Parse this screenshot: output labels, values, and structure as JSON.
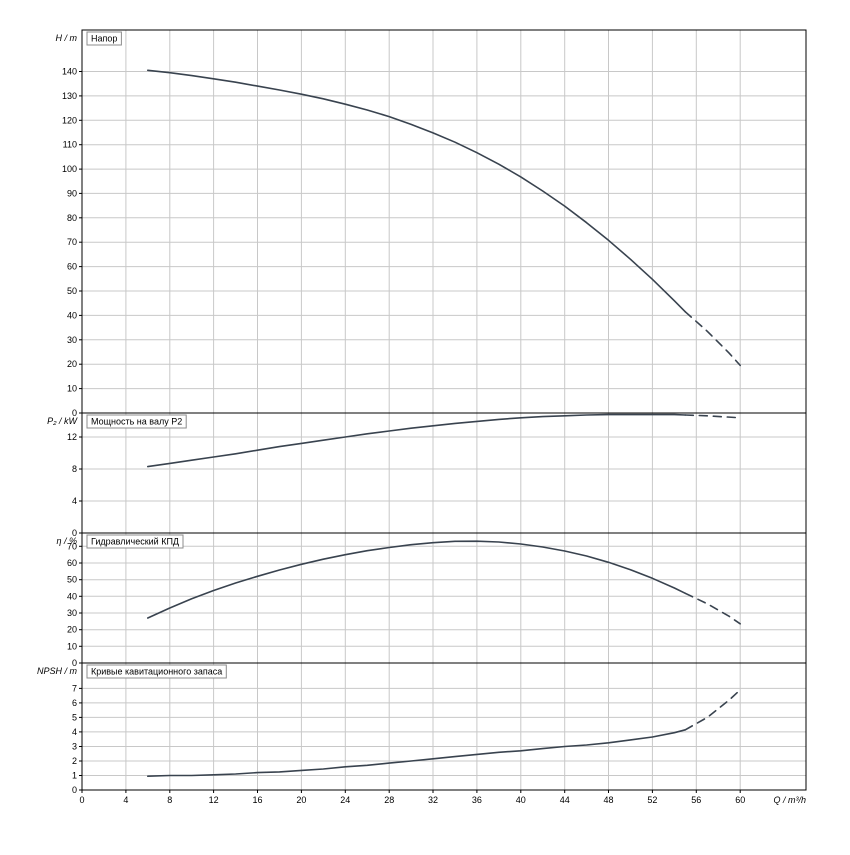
{
  "colors": {
    "curve": "#39434f",
    "grid": "#c8c8c8",
    "axis": "#000000",
    "title_box_border": "#8c8c8c",
    "background": "#ffffff"
  },
  "chart_data": {
    "type": "line",
    "xlabel": "Q / m³/h",
    "xlim": [
      0,
      66
    ],
    "xticks": [
      0,
      4,
      8,
      12,
      16,
      20,
      24,
      28,
      32,
      36,
      40,
      44,
      48,
      52,
      56,
      60
    ],
    "panels": [
      {
        "title": "Напор",
        "ylabel": "H / m",
        "ylim": [
          0,
          157
        ],
        "yticks": [
          0,
          10,
          20,
          30,
          40,
          50,
          60,
          70,
          80,
          90,
          100,
          110,
          120,
          130,
          140
        ],
        "series": [
          {
            "name": "head-solid",
            "style": "solid",
            "points": [
              [
                6,
                140.5
              ],
              [
                8,
                139.5
              ],
              [
                10,
                138.3
              ],
              [
                12,
                137
              ],
              [
                14,
                135.6
              ],
              [
                16,
                134
              ],
              [
                18,
                132.4
              ],
              [
                20,
                130.7
              ],
              [
                22,
                128.8
              ],
              [
                24,
                126.6
              ],
              [
                26,
                124.2
              ],
              [
                28,
                121.5
              ],
              [
                30,
                118.3
              ],
              [
                32,
                114.8
              ],
              [
                34,
                111
              ],
              [
                36,
                106.7
              ],
              [
                38,
                102
              ],
              [
                40,
                96.8
              ],
              [
                42,
                91
              ],
              [
                44,
                84.8
              ],
              [
                46,
                78
              ],
              [
                48,
                70.8
              ],
              [
                50,
                63
              ],
              [
                52,
                54.8
              ],
              [
                54,
                46
              ],
              [
                55,
                41.5
              ]
            ]
          },
          {
            "name": "head-extrapolated",
            "style": "dashed",
            "points": [
              [
                55,
                41.5
              ],
              [
                57,
                33.5
              ],
              [
                59,
                24.5
              ],
              [
                60,
                19.5
              ]
            ]
          }
        ]
      },
      {
        "title": "Мощность на валу P2",
        "ylabel": "P₂ / kW",
        "ylim": [
          0,
          15
        ],
        "yticks": [
          0,
          4,
          8,
          12
        ],
        "series": [
          {
            "name": "power-solid",
            "style": "solid",
            "points": [
              [
                6,
                8.3
              ],
              [
                8,
                8.7
              ],
              [
                10,
                9.1
              ],
              [
                12,
                9.5
              ],
              [
                14,
                9.9
              ],
              [
                16,
                10.35
              ],
              [
                18,
                10.8
              ],
              [
                20,
                11.2
              ],
              [
                22,
                11.6
              ],
              [
                24,
                12.0
              ],
              [
                26,
                12.4
              ],
              [
                28,
                12.75
              ],
              [
                30,
                13.1
              ],
              [
                32,
                13.4
              ],
              [
                34,
                13.7
              ],
              [
                36,
                13.95
              ],
              [
                38,
                14.2
              ],
              [
                40,
                14.4
              ],
              [
                42,
                14.55
              ],
              [
                44,
                14.65
              ],
              [
                46,
                14.75
              ],
              [
                48,
                14.8
              ],
              [
                50,
                14.8
              ],
              [
                52,
                14.8
              ],
              [
                54,
                14.8
              ],
              [
                55,
                14.75
              ]
            ]
          },
          {
            "name": "power-extrapolated",
            "style": "dashed",
            "points": [
              [
                55,
                14.75
              ],
              [
                57,
                14.65
              ],
              [
                60,
                14.4
              ]
            ]
          }
        ]
      },
      {
        "title": "Гидравлический КПД",
        "ylabel": "η / %",
        "ylim": [
          0,
          78
        ],
        "yticks": [
          0,
          10,
          20,
          30,
          40,
          50,
          60,
          70
        ],
        "series": [
          {
            "name": "efficiency-solid",
            "style": "solid",
            "points": [
              [
                6,
                27
              ],
              [
                8,
                33
              ],
              [
                10,
                38.5
              ],
              [
                12,
                43.5
              ],
              [
                14,
                48
              ],
              [
                16,
                52
              ],
              [
                18,
                55.8
              ],
              [
                20,
                59.2
              ],
              [
                22,
                62.3
              ],
              [
                24,
                65
              ],
              [
                26,
                67.4
              ],
              [
                28,
                69.3
              ],
              [
                30,
                71
              ],
              [
                32,
                72.2
              ],
              [
                34,
                73
              ],
              [
                36,
                73.1
              ],
              [
                38,
                72.6
              ],
              [
                40,
                71.4
              ],
              [
                42,
                69.6
              ],
              [
                44,
                67.2
              ],
              [
                46,
                64.2
              ],
              [
                48,
                60.4
              ],
              [
                50,
                56
              ],
              [
                52,
                50.8
              ],
              [
                54,
                45
              ],
              [
                55,
                41.8
              ]
            ]
          },
          {
            "name": "efficiency-extrapolated",
            "style": "dashed",
            "points": [
              [
                55,
                41.8
              ],
              [
                57,
                35.5
              ],
              [
                59,
                28
              ],
              [
                60,
                23.5
              ]
            ]
          }
        ]
      },
      {
        "title": "Кривые кавитационного запаса",
        "ylabel": "NPSH / m",
        "ylim": [
          0,
          8.75
        ],
        "yticks": [
          0,
          1,
          2,
          3,
          4,
          5,
          6,
          7
        ],
        "series": [
          {
            "name": "npsh-solid",
            "style": "solid",
            "points": [
              [
                6,
                0.95
              ],
              [
                8,
                1.0
              ],
              [
                10,
                1.0
              ],
              [
                12,
                1.05
              ],
              [
                14,
                1.1
              ],
              [
                16,
                1.2
              ],
              [
                18,
                1.25
              ],
              [
                20,
                1.35
              ],
              [
                22,
                1.45
              ],
              [
                24,
                1.6
              ],
              [
                26,
                1.7
              ],
              [
                28,
                1.85
              ],
              [
                30,
                2.0
              ],
              [
                32,
                2.15
              ],
              [
                34,
                2.3
              ],
              [
                36,
                2.45
              ],
              [
                38,
                2.6
              ],
              [
                40,
                2.7
              ],
              [
                42,
                2.85
              ],
              [
                44,
                3.0
              ],
              [
                46,
                3.1
              ],
              [
                48,
                3.25
              ],
              [
                50,
                3.45
              ],
              [
                52,
                3.65
              ],
              [
                54,
                3.95
              ],
              [
                55,
                4.15
              ]
            ]
          },
          {
            "name": "npsh-extrapolated",
            "style": "dashed",
            "points": [
              [
                55,
                4.15
              ],
              [
                57,
                5.0
              ],
              [
                59,
                6.2
              ],
              [
                60,
                6.9
              ]
            ]
          }
        ]
      }
    ]
  }
}
